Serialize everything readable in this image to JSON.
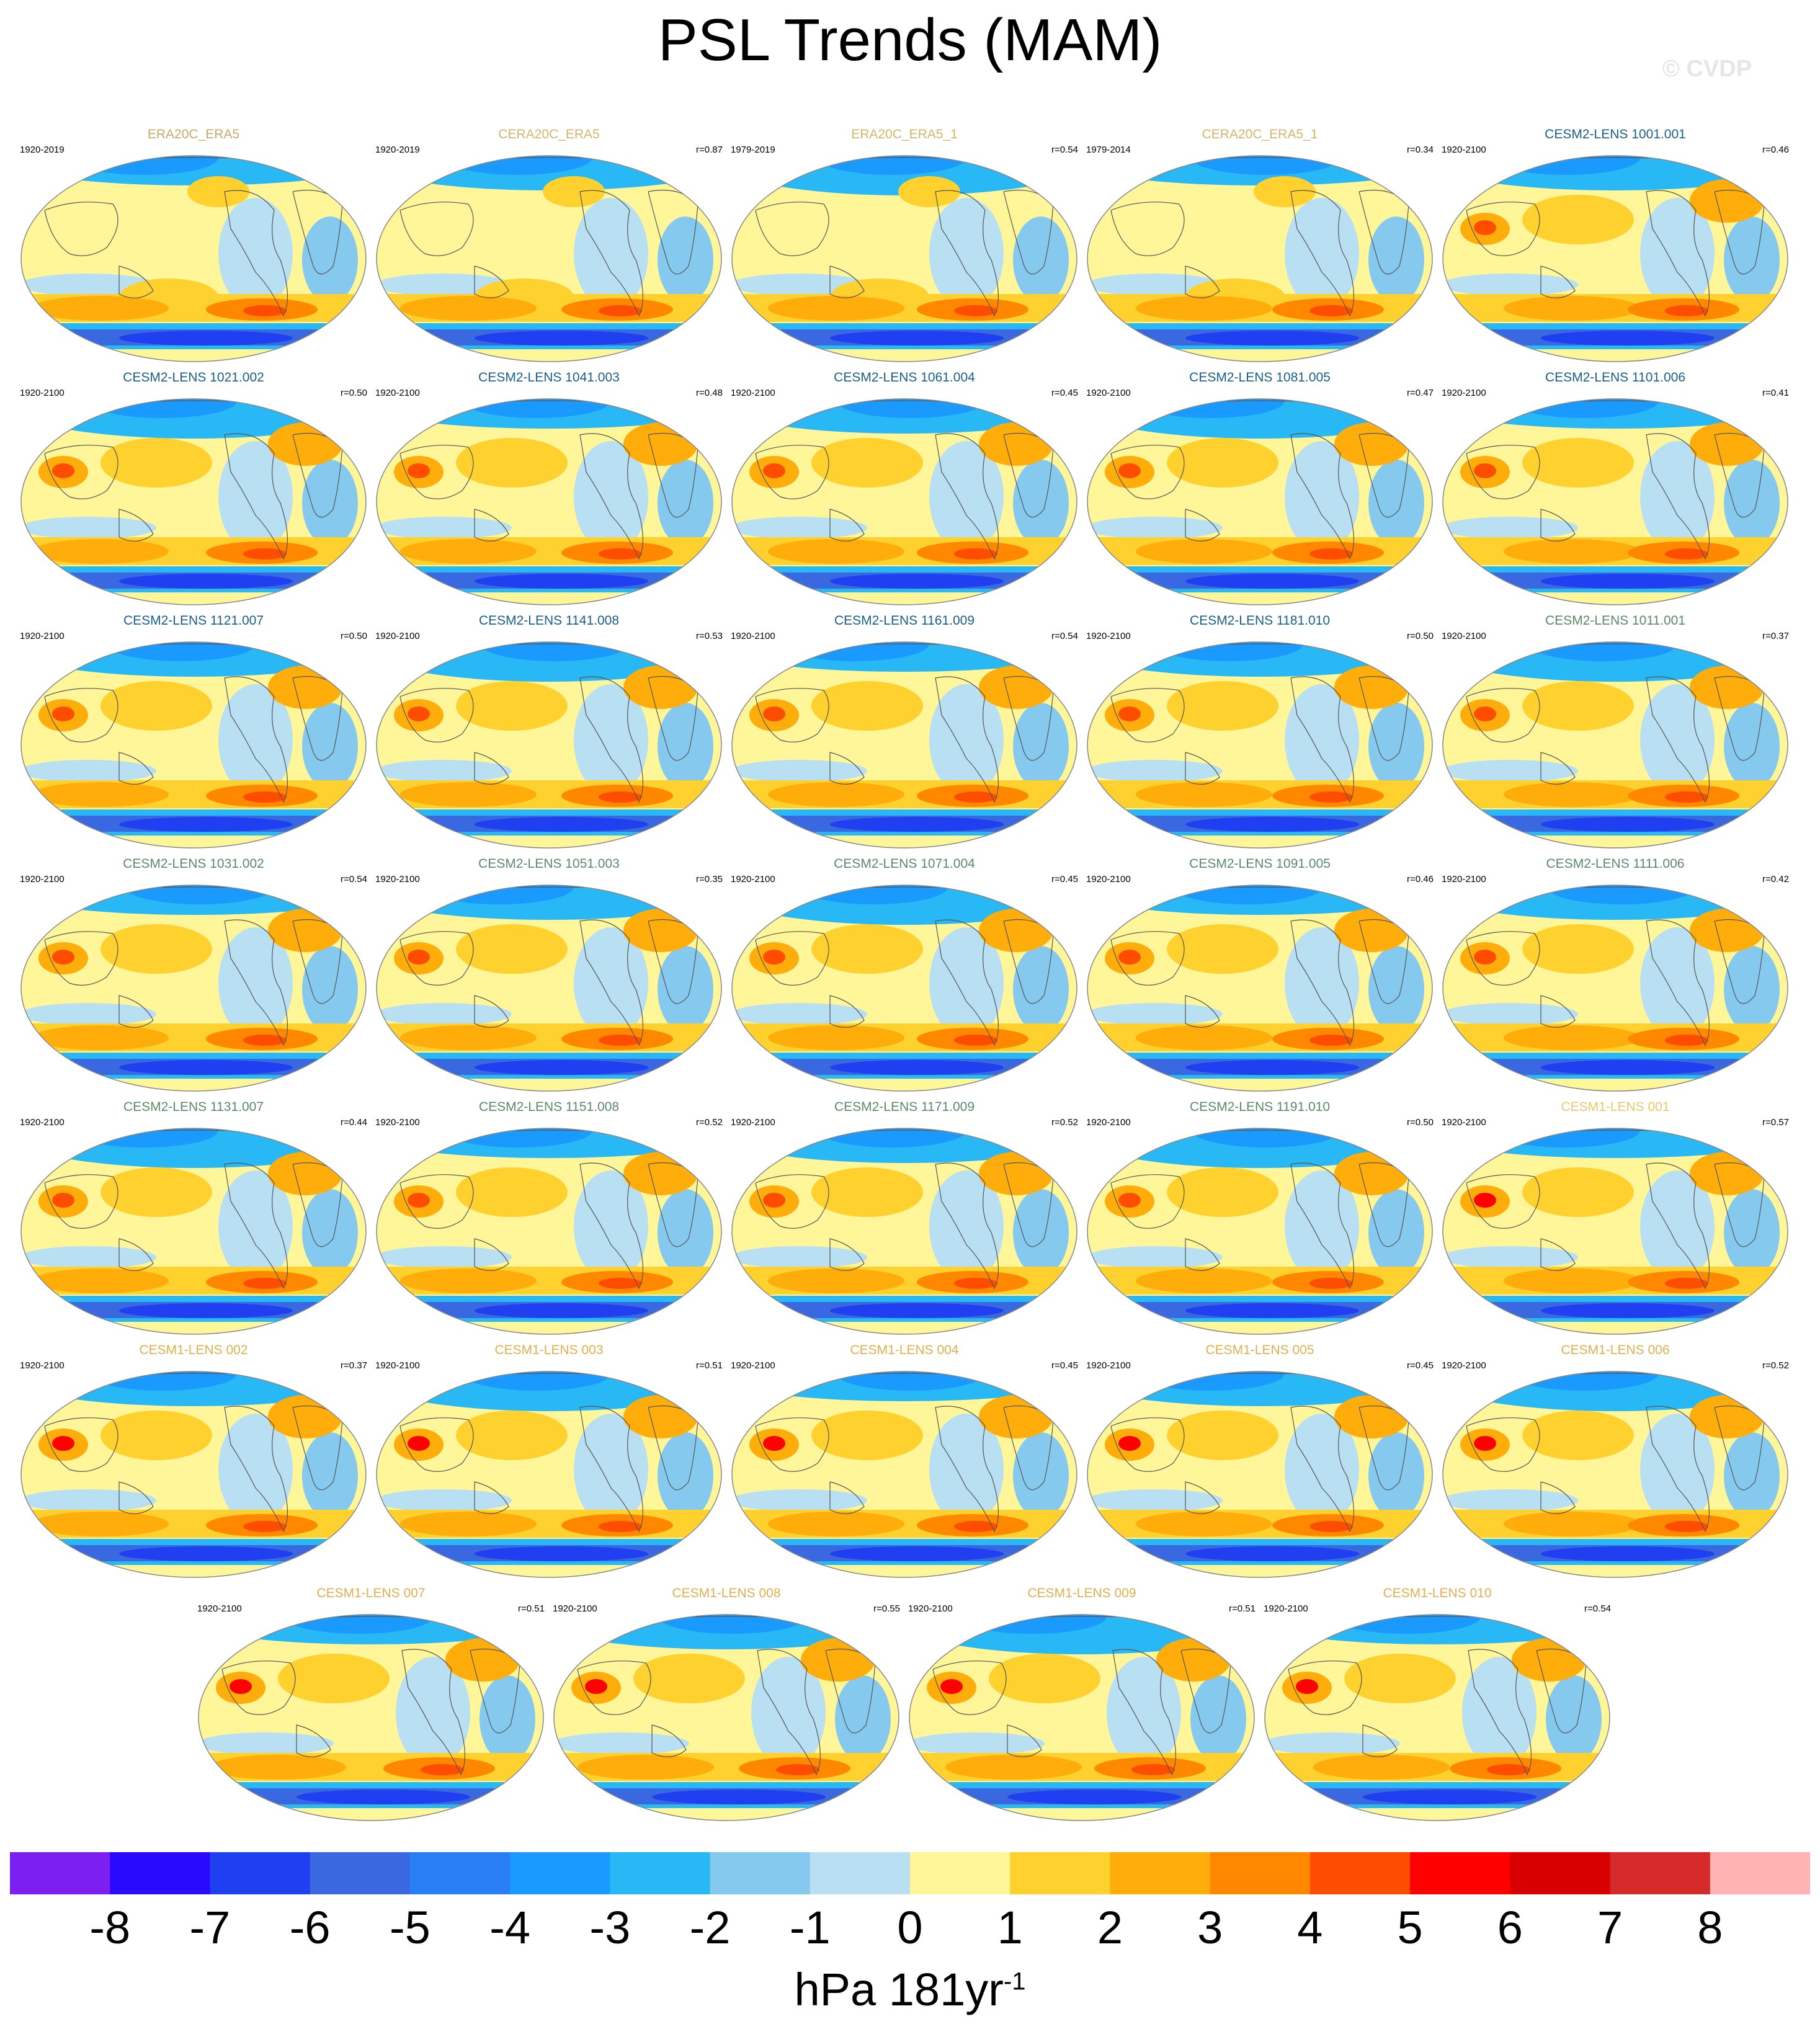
{
  "title": "PSL Trends (MAM)",
  "watermark": "© CVDP",
  "chart_data": {
    "type": "heatmap",
    "variable": "PSL",
    "season": "MAM",
    "colorbar": {
      "ticks": [
        "-8",
        "-7",
        "-6",
        "-5",
        "-4",
        "-3",
        "-2",
        "-1",
        "0",
        "1",
        "2",
        "3",
        "4",
        "5",
        "6",
        "7",
        "8"
      ],
      "colors": [
        "#7b1ff2",
        "#2a0aff",
        "#1f3ff0",
        "#3a68e0",
        "#2a7ef5",
        "#1a9aff",
        "#27b8f5",
        "#86c9ef",
        "#b8e0f2",
        "#fff69a",
        "#ffd12e",
        "#ffad0a",
        "#ff8800",
        "#ff4d00",
        "#ff0000",
        "#d80000",
        "#d42a2a",
        "#ffb3b3"
      ]
    },
    "units": "hPa 181yr",
    "units_exponent": "-1",
    "panels": [
      {
        "name": "ERA20C_ERA5",
        "years": "1920-2019",
        "r": "",
        "color": "#c8a86a"
      },
      {
        "name": "CERA20C_ERA5",
        "years": "1920-2019",
        "r": "r=0.87",
        "color": "#d4b56a"
      },
      {
        "name": "ERA20C_ERA5_1",
        "years": "1979-2019",
        "r": "r=0.54",
        "color": "#d4b56a"
      },
      {
        "name": "CERA20C_ERA5_1",
        "years": "1979-2014",
        "r": "r=0.34",
        "color": "#d4b56a"
      },
      {
        "name": "CESM2-LENS 1001.001",
        "years": "1920-2100",
        "r": "r=0.46",
        "color": "#1a5f8a"
      },
      {
        "name": "CESM2-LENS 1021.002",
        "years": "1920-2100",
        "r": "r=0.50",
        "color": "#1a5f8a"
      },
      {
        "name": "CESM2-LENS 1041.003",
        "years": "1920-2100",
        "r": "r=0.48",
        "color": "#1a5f8a"
      },
      {
        "name": "CESM2-LENS 1061.004",
        "years": "1920-2100",
        "r": "r=0.45",
        "color": "#1a5f8a"
      },
      {
        "name": "CESM2-LENS 1081.005",
        "years": "1920-2100",
        "r": "r=0.47",
        "color": "#1a5f8a"
      },
      {
        "name": "CESM2-LENS 1101.006",
        "years": "1920-2100",
        "r": "r=0.41",
        "color": "#1a5f8a"
      },
      {
        "name": "CESM2-LENS 1121.007",
        "years": "1920-2100",
        "r": "r=0.50",
        "color": "#1a5f8a"
      },
      {
        "name": "CESM2-LENS 1141.008",
        "years": "1920-2100",
        "r": "r=0.53",
        "color": "#1a5f8a"
      },
      {
        "name": "CESM2-LENS 1161.009",
        "years": "1920-2100",
        "r": "r=0.54",
        "color": "#1a5f8a"
      },
      {
        "name": "CESM2-LENS 1181.010",
        "years": "1920-2100",
        "r": "r=0.50",
        "color": "#1a5f8a"
      },
      {
        "name": "CESM2-LENS 1011.001",
        "years": "1920-2100",
        "r": "r=0.37",
        "color": "#5a8a6a"
      },
      {
        "name": "CESM2-LENS 1031.002",
        "years": "1920-2100",
        "r": "r=0.54",
        "color": "#5a8a6a"
      },
      {
        "name": "CESM2-LENS 1051.003",
        "years": "1920-2100",
        "r": "r=0.35",
        "color": "#5a8a6a"
      },
      {
        "name": "CESM2-LENS 1071.004",
        "years": "1920-2100",
        "r": "r=0.45",
        "color": "#5a8a6a"
      },
      {
        "name": "CESM2-LENS 1091.005",
        "years": "1920-2100",
        "r": "r=0.46",
        "color": "#5a8a6a"
      },
      {
        "name": "CESM2-LENS 1111.006",
        "years": "1920-2100",
        "r": "r=0.42",
        "color": "#5a8a6a"
      },
      {
        "name": "CESM2-LENS 1131.007",
        "years": "1920-2100",
        "r": "r=0.44",
        "color": "#5a8a6a"
      },
      {
        "name": "CESM2-LENS 1151.008",
        "years": "1920-2100",
        "r": "r=0.52",
        "color": "#5a8a6a"
      },
      {
        "name": "CESM2-LENS 1171.009",
        "years": "1920-2100",
        "r": "r=0.52",
        "color": "#5a8a6a"
      },
      {
        "name": "CESM2-LENS 1191.010",
        "years": "1920-2100",
        "r": "r=0.50",
        "color": "#5a8a6a"
      },
      {
        "name": "CESM1-LENS 001",
        "years": "1920-2100",
        "r": "r=0.57",
        "color": "#e8c86a"
      },
      {
        "name": "CESM1-LENS 002",
        "years": "1920-2100",
        "r": "r=0.37",
        "color": "#e0b050"
      },
      {
        "name": "CESM1-LENS 003",
        "years": "1920-2100",
        "r": "r=0.51",
        "color": "#e0b050"
      },
      {
        "name": "CESM1-LENS 004",
        "years": "1920-2100",
        "r": "r=0.45",
        "color": "#e0b050"
      },
      {
        "name": "CESM1-LENS 005",
        "years": "1920-2100",
        "r": "r=0.45",
        "color": "#e0b050"
      },
      {
        "name": "CESM1-LENS 006",
        "years": "1920-2100",
        "r": "r=0.52",
        "color": "#e0b050"
      },
      {
        "name": "CESM1-LENS 007",
        "years": "1920-2100",
        "r": "r=0.51",
        "color": "#e0b050"
      },
      {
        "name": "CESM1-LENS 008",
        "years": "1920-2100",
        "r": "r=0.55",
        "color": "#e0b050"
      },
      {
        "name": "CESM1-LENS 009",
        "years": "1920-2100",
        "r": "r=0.51",
        "color": "#e0b050"
      },
      {
        "name": "CESM1-LENS 010",
        "years": "1920-2100",
        "r": "r=0.54",
        "color": "#e0b050"
      }
    ]
  }
}
